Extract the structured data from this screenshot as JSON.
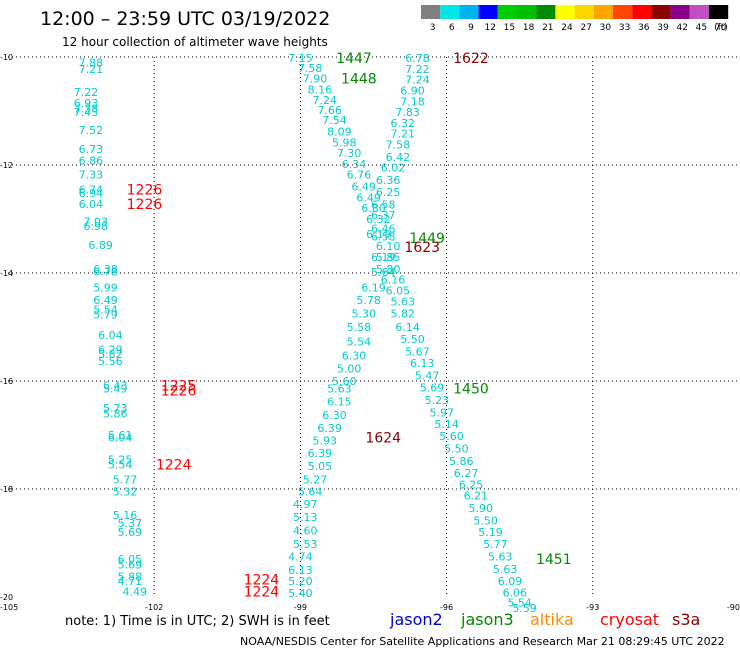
{
  "title": "12:00 – 23:59 UTC 03/19/2022",
  "subtitle": "12 hour collection of altimeter wave heights",
  "legend": {
    "labels": [
      "3",
      "6",
      "9",
      "12",
      "15",
      "18",
      "21",
      "24",
      "27",
      "30",
      "33",
      "36",
      "39",
      "42",
      "45",
      "70"
    ],
    "unit": "(ft)",
    "colors": [
      "#808080",
      "#00e5e5",
      "#00b2ee",
      "#0000ff",
      "#00cd00",
      "#00c000",
      "#008b00",
      "#ffff00",
      "#ffd700",
      "#ffa500",
      "#ff4500",
      "#ff0000",
      "#8b0000",
      "#8b008b",
      "#c050c0",
      "#000000"
    ]
  },
  "note_text": "note: 1) Time is in UTC; 2) SWH is in feet",
  "satellites": [
    {
      "name": "jason2",
      "color": "#0000cd"
    },
    {
      "name": "jason3",
      "color": "#008b00"
    },
    {
      "name": "altika",
      "color": "#ff8c00"
    },
    {
      "name": "cryosat",
      "color": "#ff0000"
    },
    {
      "name": "s3a",
      "color": "#8b0000"
    }
  ],
  "credit": "NOAA/NESDIS Center for Satellite Applications and Research    Mar 21 08:29:45 UTC 2022",
  "chart_data": {
    "type": "scatter",
    "title": "12:00 – 23:59 UTC 03/19/2022",
    "subtitle": "12 hour collection of altimeter wave heights",
    "xlim": [
      -105,
      -90
    ],
    "ylim": [
      -20,
      -10
    ],
    "x_ticks": [
      -105,
      -102,
      -99,
      -96,
      -93,
      -90
    ],
    "y_ticks": [
      -10,
      -12,
      -14,
      -16,
      -18,
      -20
    ],
    "grid": true,
    "series": [
      {
        "name": "cryosat",
        "color": "#00cccc",
        "points": [
          {
            "x": -103.3,
            "y": -10.1,
            "v": "7.88"
          },
          {
            "x": -103.3,
            "y": -10.22,
            "v": "7.21"
          },
          {
            "x": -103.4,
            "y": -10.65,
            "v": "7.22"
          },
          {
            "x": -103.4,
            "y": -10.85,
            "v": "6.93"
          },
          {
            "x": -103.4,
            "y": -10.95,
            "v": "7.38"
          },
          {
            "x": -103.4,
            "y": -11.02,
            "v": "7.43"
          },
          {
            "x": -103.3,
            "y": -11.35,
            "v": "7.52"
          },
          {
            "x": -103.3,
            "y": -11.7,
            "v": "6.73"
          },
          {
            "x": -103.3,
            "y": -11.92,
            "v": "6.86"
          },
          {
            "x": -103.3,
            "y": -12.18,
            "v": "7.33"
          },
          {
            "x": -103.3,
            "y": -12.45,
            "v": "6.74"
          },
          {
            "x": -103.3,
            "y": -12.52,
            "v": "6.94"
          },
          {
            "x": -103.3,
            "y": -12.72,
            "v": "6.04"
          },
          {
            "x": -103.2,
            "y": -13.05,
            "v": "7.03"
          },
          {
            "x": -103.2,
            "y": -13.13,
            "v": "6.98"
          },
          {
            "x": -103.1,
            "y": -13.48,
            "v": "6.89"
          },
          {
            "x": -103.0,
            "y": -13.93,
            "v": "6.38"
          },
          {
            "x": -103.0,
            "y": -13.97,
            "v": "6.78"
          },
          {
            "x": -103.0,
            "y": -14.27,
            "v": "5.99"
          },
          {
            "x": -103.0,
            "y": -14.5,
            "v": "6.49"
          },
          {
            "x": -103.0,
            "y": -14.68,
            "v": "5.54"
          },
          {
            "x": -103.0,
            "y": -14.77,
            "v": "5.79"
          },
          {
            "x": -102.9,
            "y": -15.15,
            "v": "6.04"
          },
          {
            "x": -102.9,
            "y": -15.42,
            "v": "6.29"
          },
          {
            "x": -102.9,
            "y": -15.5,
            "v": "5.82"
          },
          {
            "x": -102.9,
            "y": -15.63,
            "v": "5.56"
          },
          {
            "x": -102.8,
            "y": -16.08,
            "v": "6.43"
          },
          {
            "x": -102.8,
            "y": -16.14,
            "v": "5.49"
          },
          {
            "x": -102.8,
            "y": -16.5,
            "v": "5.73"
          },
          {
            "x": -102.8,
            "y": -16.6,
            "v": "5.86"
          },
          {
            "x": -102.7,
            "y": -17.0,
            "v": "5.61"
          },
          {
            "x": -102.7,
            "y": -17.05,
            "v": "6.04"
          },
          {
            "x": -102.7,
            "y": -17.45,
            "v": "5.25"
          },
          {
            "x": -102.7,
            "y": -17.55,
            "v": "5.54"
          },
          {
            "x": -102.6,
            "y": -17.82,
            "v": "5.77"
          },
          {
            "x": -102.6,
            "y": -18.05,
            "v": "5.32"
          },
          {
            "x": -102.6,
            "y": -18.48,
            "v": "5.16"
          },
          {
            "x": -102.5,
            "y": -18.63,
            "v": "5.37"
          },
          {
            "x": -102.5,
            "y": -18.8,
            "v": "5.69"
          },
          {
            "x": -102.5,
            "y": -19.3,
            "v": "6.05"
          },
          {
            "x": -102.5,
            "y": -19.4,
            "v": "5.69"
          },
          {
            "x": -102.5,
            "y": -19.62,
            "v": "5.88"
          },
          {
            "x": -102.5,
            "y": -19.7,
            "v": "4.71"
          },
          {
            "x": -102.4,
            "y": -19.9,
            "v": "4.49"
          }
        ]
      },
      {
        "name": "jason3",
        "color": "#00cccc",
        "points": [
          {
            "x": -99.0,
            "y": -10.02,
            "v": "7.15"
          },
          {
            "x": -98.8,
            "y": -10.2,
            "v": "7.58"
          },
          {
            "x": -98.7,
            "y": -10.4,
            "v": "7.90"
          },
          {
            "x": -98.6,
            "y": -10.6,
            "v": "8.16"
          },
          {
            "x": -98.5,
            "y": -10.8,
            "v": "7.24"
          },
          {
            "x": -98.4,
            "y": -10.98,
            "v": "7.66"
          },
          {
            "x": -98.3,
            "y": -11.17,
            "v": "7.54"
          },
          {
            "x": -98.2,
            "y": -11.38,
            "v": "8.09"
          },
          {
            "x": -98.1,
            "y": -11.58,
            "v": "5.98"
          },
          {
            "x": -98.0,
            "y": -11.78,
            "v": "7.30"
          },
          {
            "x": -97.9,
            "y": -11.98,
            "v": "6.34"
          },
          {
            "x": -97.8,
            "y": -12.18,
            "v": "6.76"
          },
          {
            "x": -97.7,
            "y": -12.4,
            "v": "6.49"
          },
          {
            "x": -97.6,
            "y": -12.6,
            "v": "6.49"
          },
          {
            "x": -97.5,
            "y": -12.8,
            "v": "6.80"
          },
          {
            "x": -97.4,
            "y": -13.0,
            "v": "6.32"
          },
          {
            "x": -97.3,
            "y": -13.18,
            "v": "6.46"
          },
          {
            "x": -97.3,
            "y": -13.32,
            "v": "6.58"
          },
          {
            "x": -97.2,
            "y": -13.5,
            "v": "6.10"
          },
          {
            "x": -97.2,
            "y": -13.7,
            "v": "5.85"
          },
          {
            "x": -97.3,
            "y": -13.98,
            "v": "5.64"
          },
          {
            "x": -97.5,
            "y": -14.27,
            "v": "6.19"
          },
          {
            "x": -97.6,
            "y": -14.5,
            "v": "5.78"
          },
          {
            "x": -97.7,
            "y": -14.75,
            "v": "5.30"
          },
          {
            "x": -97.8,
            "y": -15.0,
            "v": "5.58"
          },
          {
            "x": -97.8,
            "y": -15.27,
            "v": "5.54"
          },
          {
            "x": -97.9,
            "y": -15.53,
            "v": "6.30"
          },
          {
            "x": -98.0,
            "y": -15.77,
            "v": "5.00"
          },
          {
            "x": -98.1,
            "y": -16.0,
            "v": "5.60"
          },
          {
            "x": -98.2,
            "y": -16.14,
            "v": "5.63"
          },
          {
            "x": -98.2,
            "y": -16.38,
            "v": "6.15"
          },
          {
            "x": -98.3,
            "y": -16.63,
            "v": "6.30"
          },
          {
            "x": -98.4,
            "y": -16.87,
            "v": "6.39"
          },
          {
            "x": -98.5,
            "y": -17.1,
            "v": "5.93"
          },
          {
            "x": -98.6,
            "y": -17.33,
            "v": "6.39"
          },
          {
            "x": -98.6,
            "y": -17.57,
            "v": "5.05"
          },
          {
            "x": -98.7,
            "y": -17.82,
            "v": "5.27"
          },
          {
            "x": -98.8,
            "y": -18.05,
            "v": "5.64"
          },
          {
            "x": -98.9,
            "y": -18.28,
            "v": "4.97"
          },
          {
            "x": -98.9,
            "y": -18.52,
            "v": "5.13"
          },
          {
            "x": -98.9,
            "y": -18.77,
            "v": "4.60"
          },
          {
            "x": -98.9,
            "y": -19.02,
            "v": "5.53"
          },
          {
            "x": -99.0,
            "y": -19.25,
            "v": "4.74"
          },
          {
            "x": -99.0,
            "y": -19.5,
            "v": "6.13"
          },
          {
            "x": -99.0,
            "y": -19.7,
            "v": "5.20"
          },
          {
            "x": -99.0,
            "y": -19.93,
            "v": "5.40"
          }
        ]
      },
      {
        "name": "s3a",
        "color": "#00cccc",
        "points": [
          {
            "x": -96.6,
            "y": -10.02,
            "v": "6.78"
          },
          {
            "x": -96.6,
            "y": -10.22,
            "v": "7.22"
          },
          {
            "x": -96.6,
            "y": -10.42,
            "v": "7.24"
          },
          {
            "x": -96.7,
            "y": -10.62,
            "v": "6.90"
          },
          {
            "x": -96.7,
            "y": -10.82,
            "v": "7.18"
          },
          {
            "x": -96.8,
            "y": -11.02,
            "v": "7.83"
          },
          {
            "x": -96.9,
            "y": -11.22,
            "v": "6.32"
          },
          {
            "x": -96.9,
            "y": -11.42,
            "v": "7.21"
          },
          {
            "x": -97.0,
            "y": -11.62,
            "v": "7.58"
          },
          {
            "x": -97.0,
            "y": -11.85,
            "v": "6.42"
          },
          {
            "x": -97.1,
            "y": -12.05,
            "v": "6.02"
          },
          {
            "x": -97.2,
            "y": -12.28,
            "v": "6.36"
          },
          {
            "x": -97.2,
            "y": -12.5,
            "v": "6.25"
          },
          {
            "x": -97.3,
            "y": -12.73,
            "v": "6.58"
          },
          {
            "x": -97.3,
            "y": -12.93,
            "v": "6.37"
          },
          {
            "x": -97.4,
            "y": -13.28,
            "v": "6.19"
          },
          {
            "x": -97.3,
            "y": -13.7,
            "v": "6.19"
          },
          {
            "x": -97.2,
            "y": -13.93,
            "v": "5.80"
          },
          {
            "x": -97.1,
            "y": -14.12,
            "v": "6.16"
          },
          {
            "x": -97.0,
            "y": -14.32,
            "v": "6.05"
          },
          {
            "x": -96.9,
            "y": -14.53,
            "v": "5.63"
          },
          {
            "x": -96.9,
            "y": -14.75,
            "v": "5.82"
          },
          {
            "x": -96.8,
            "y": -15.0,
            "v": "6.14"
          },
          {
            "x": -96.7,
            "y": -15.22,
            "v": "5.50"
          },
          {
            "x": -96.6,
            "y": -15.45,
            "v": "5.67"
          },
          {
            "x": -96.5,
            "y": -15.67,
            "v": "6.13"
          },
          {
            "x": -96.4,
            "y": -15.9,
            "v": "5.47"
          },
          {
            "x": -96.3,
            "y": -16.12,
            "v": "5.69"
          },
          {
            "x": -96.2,
            "y": -16.35,
            "v": "5.23"
          },
          {
            "x": -96.1,
            "y": -16.58,
            "v": "5.97"
          },
          {
            "x": -96.0,
            "y": -16.8,
            "v": "5.14"
          },
          {
            "x": -95.9,
            "y": -17.02,
            "v": "5.60"
          },
          {
            "x": -95.8,
            "y": -17.25,
            "v": "5.50"
          },
          {
            "x": -95.7,
            "y": -17.48,
            "v": "5.86"
          },
          {
            "x": -95.6,
            "y": -17.7,
            "v": "6.27"
          },
          {
            "x": -95.5,
            "y": -17.92,
            "v": "6.25"
          },
          {
            "x": -95.4,
            "y": -18.12,
            "v": "6.21"
          },
          {
            "x": -95.3,
            "y": -18.35,
            "v": "5.90"
          },
          {
            "x": -95.2,
            "y": -18.58,
            "v": "5.50"
          },
          {
            "x": -95.1,
            "y": -18.8,
            "v": "5.19"
          },
          {
            "x": -95.0,
            "y": -19.02,
            "v": "5.77"
          },
          {
            "x": -94.9,
            "y": -19.25,
            "v": "5.63"
          },
          {
            "x": -94.8,
            "y": -19.48,
            "v": "5.63"
          },
          {
            "x": -94.7,
            "y": -19.7,
            "v": "6.09"
          },
          {
            "x": -94.6,
            "y": -19.92,
            "v": "6.06"
          },
          {
            "x": -94.5,
            "y": -20.1,
            "v": "5.54"
          },
          {
            "x": -94.4,
            "y": -20.2,
            "v": "5.59"
          }
        ]
      }
    ],
    "pass_labels": [
      {
        "text": "1447",
        "x": -97.9,
        "y": -10.02,
        "color": "#008b00"
      },
      {
        "text": "1448",
        "x": -97.8,
        "y": -10.4,
        "color": "#008b00"
      },
      {
        "text": "1622",
        "x": -95.5,
        "y": -10.02,
        "color": "#8b0000"
      },
      {
        "text": "1226",
        "x": -102.2,
        "y": -12.45,
        "color": "#ff0000"
      },
      {
        "text": "1226",
        "x": -102.2,
        "y": -12.72,
        "color": "#ff0000"
      },
      {
        "text": "1449",
        "x": -96.4,
        "y": -13.35,
        "color": "#008b00"
      },
      {
        "text": "1623",
        "x": -96.5,
        "y": -13.52,
        "color": "#8b0000"
      },
      {
        "text": "1225",
        "x": -101.5,
        "y": -16.08,
        "color": "#ff0000"
      },
      {
        "text": "1226",
        "x": -101.5,
        "y": -16.18,
        "color": "#ff0000"
      },
      {
        "text": "1450",
        "x": -95.5,
        "y": -16.14,
        "color": "#008b00"
      },
      {
        "text": "1624",
        "x": -97.3,
        "y": -17.05,
        "color": "#8b0000"
      },
      {
        "text": "1224",
        "x": -101.6,
        "y": -17.55,
        "color": "#ff0000"
      },
      {
        "text": "1451",
        "x": -93.8,
        "y": -19.3,
        "color": "#008b00"
      },
      {
        "text": "1224",
        "x": -99.8,
        "y": -19.68,
        "color": "#ff0000"
      },
      {
        "text": "1224",
        "x": -99.8,
        "y": -19.9,
        "color": "#ff0000"
      }
    ]
  }
}
